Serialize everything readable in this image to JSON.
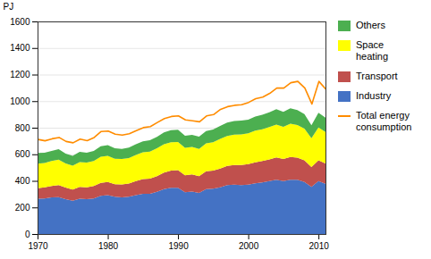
{
  "chart_data": {
    "type": "area",
    "stacked": true,
    "ylabel": "PJ",
    "x": [
      1970,
      1971,
      1972,
      1973,
      1974,
      1975,
      1976,
      1977,
      1978,
      1979,
      1980,
      1981,
      1982,
      1983,
      1984,
      1985,
      1986,
      1987,
      1988,
      1989,
      1990,
      1991,
      1992,
      1993,
      1994,
      1995,
      1996,
      1997,
      1998,
      1999,
      2000,
      2001,
      2002,
      2003,
      2004,
      2005,
      2006,
      2007,
      2008,
      2009,
      2010,
      2011
    ],
    "series": [
      {
        "name": "Industry",
        "type": "area",
        "color": "#4472C4",
        "values": [
          265,
          268,
          275,
          278,
          262,
          250,
          265,
          262,
          268,
          288,
          292,
          280,
          276,
          280,
          292,
          302,
          302,
          318,
          338,
          348,
          348,
          315,
          320,
          310,
          338,
          342,
          352,
          368,
          372,
          368,
          372,
          382,
          388,
          398,
          408,
          398,
          408,
          408,
          392,
          355,
          398,
          378
        ]
      },
      {
        "name": "Transport",
        "type": "area",
        "color": "#C0504D",
        "values": [
          80,
          83,
          87,
          90,
          87,
          85,
          90,
          90,
          93,
          97,
          100,
          95,
          97,
          100,
          106,
          111,
          114,
          118,
          124,
          130,
          132,
          127,
          128,
          126,
          134,
          136,
          141,
          144,
          148,
          151,
          154,
          158,
          161,
          164,
          168,
          166,
          171,
          166,
          163,
          150,
          156,
          153
        ]
      },
      {
        "name": "Space\nheating",
        "type": "area",
        "color": "#FFFF00",
        "values": [
          185,
          183,
          188,
          192,
          182,
          180,
          187,
          186,
          189,
          196,
          197,
          192,
          192,
          192,
          197,
          202,
          205,
          209,
          213,
          213,
          212,
          207,
          207,
          205,
          210,
          213,
          223,
          226,
          228,
          230,
          232,
          238,
          240,
          243,
          248,
          243,
          252,
          246,
          238,
          216,
          248,
          237
        ]
      },
      {
        "name": "Others",
        "type": "area",
        "color": "#4CAF50",
        "values": [
          80,
          78,
          76,
          78,
          74,
          74,
          76,
          74,
          76,
          80,
          80,
          78,
          76,
          78,
          80,
          83,
          85,
          86,
          89,
          91,
          93,
          91,
          91,
          91,
          93,
          95,
          97,
          100,
          102,
          104,
          103,
          106,
          109,
          111,
          115,
          112,
          115,
          112,
          109,
          98,
          111,
          107
        ]
      },
      {
        "name": "Total energy\nconsumption",
        "type": "line",
        "color": "#FF8C00",
        "values": [
          715,
          705,
          720,
          730,
          700,
          690,
          718,
          706,
          730,
          775,
          778,
          755,
          748,
          758,
          782,
          804,
          812,
          843,
          872,
          888,
          892,
          862,
          856,
          848,
          892,
          902,
          942,
          962,
          972,
          976,
          994,
          1022,
          1034,
          1062,
          1102,
          1102,
          1142,
          1152,
          1102,
          982,
          1152,
          1092
        ]
      }
    ],
    "xlim": [
      1970,
      2011
    ],
    "xticks": [
      1970,
      1980,
      1990,
      2000,
      2010
    ],
    "ylim": [
      0,
      1600
    ],
    "yticks": [
      0,
      200,
      400,
      600,
      800,
      1000,
      1200,
      1400,
      1600
    ],
    "grid": "y",
    "legend": "right"
  }
}
